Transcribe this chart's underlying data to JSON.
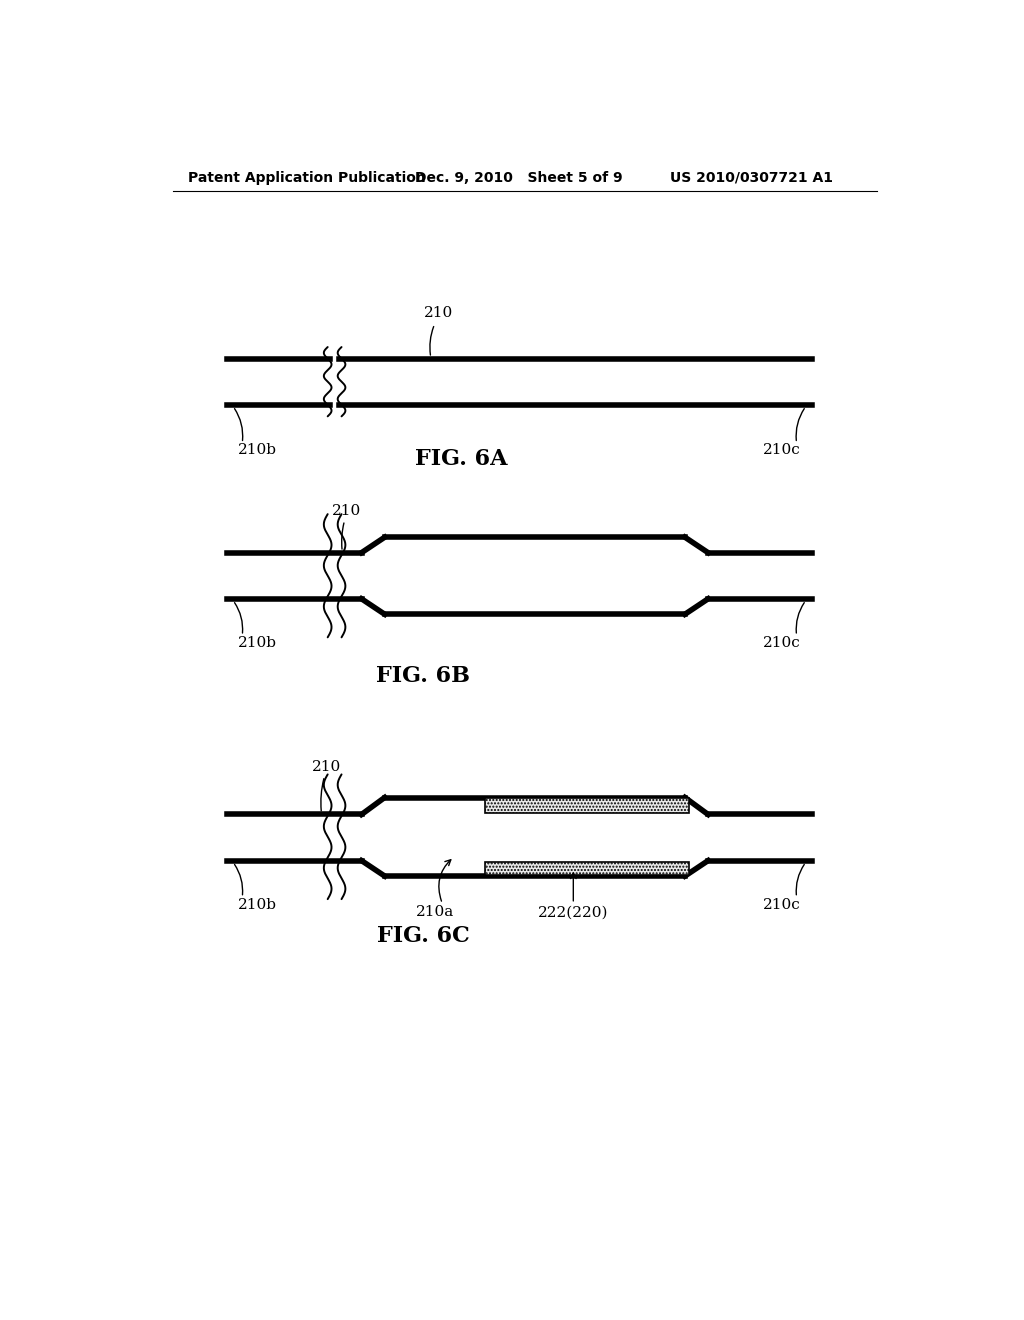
{
  "bg_color": "#ffffff",
  "text_color": "#000000",
  "header_left": "Patent Application Publication",
  "header_mid": "Dec. 9, 2010   Sheet 5 of 9",
  "header_right": "US 2010/0307721 A1",
  "fig6a_label": "FIG. 6A",
  "fig6b_label": "FIG. 6B",
  "fig6c_label": "FIG. 6C",
  "label_210": "210",
  "label_210b": "210b",
  "label_210c": "210c",
  "label_210a": "210a",
  "label_222": "222(220)"
}
